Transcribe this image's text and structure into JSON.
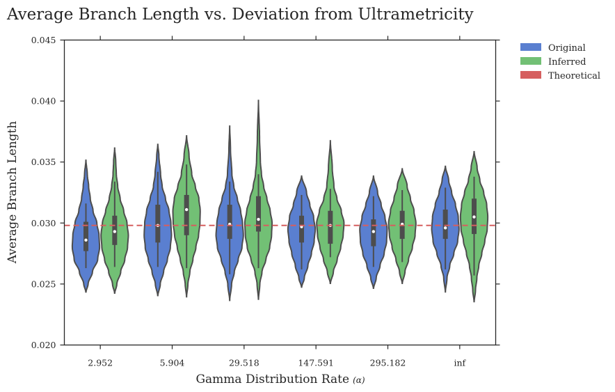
{
  "chart_data": {
    "type": "violin",
    "title": "Average Branch Length vs. Deviation from Ultrametricity",
    "xlabel": "Gamma Distribution Rate",
    "xlabel_symbol": "(α)",
    "ylabel": "Average Branch Length",
    "ylim": [
      0.02,
      0.045
    ],
    "yticks": [
      "0.020",
      "0.025",
      "0.030",
      "0.035",
      "0.040",
      "0.045"
    ],
    "categories": [
      "2.952",
      "5.904",
      "29.518",
      "147.591",
      "295.182",
      "inf"
    ],
    "legend_position": "outside-top-right",
    "grid": false,
    "reference_line": {
      "name": "Theoretical",
      "value": 0.0298,
      "color": "#d65f5f"
    },
    "series": [
      {
        "name": "Original",
        "color": "#4c72b0",
        "fill": "#5a7fd0",
        "groups": [
          {
            "min": 0.0243,
            "max": 0.0352,
            "median": 0.0286,
            "q1": 0.0277,
            "q3": 0.0301,
            "wlo": 0.0263,
            "whi": 0.0316,
            "profile": [
              [
                0.0243,
                0.0
              ],
              [
                0.025,
                0.16
              ],
              [
                0.026,
                0.48
              ],
              [
                0.027,
                0.86
              ],
              [
                0.028,
                1.0
              ],
              [
                0.029,
                0.96
              ],
              [
                0.03,
                0.8
              ],
              [
                0.031,
                0.52
              ],
              [
                0.032,
                0.32
              ],
              [
                0.033,
                0.2
              ],
              [
                0.034,
                0.1
              ],
              [
                0.0352,
                0.0
              ]
            ]
          },
          {
            "min": 0.024,
            "max": 0.0365,
            "median": 0.0298,
            "q1": 0.0284,
            "q3": 0.0315,
            "wlo": 0.0264,
            "whi": 0.0342,
            "profile": [
              [
                0.024,
                0.0
              ],
              [
                0.025,
                0.18
              ],
              [
                0.026,
                0.42
              ],
              [
                0.027,
                0.7
              ],
              [
                0.028,
                0.92
              ],
              [
                0.029,
                1.0
              ],
              [
                0.03,
                0.96
              ],
              [
                0.031,
                0.82
              ],
              [
                0.032,
                0.56
              ],
              [
                0.033,
                0.32
              ],
              [
                0.034,
                0.2
              ],
              [
                0.0355,
                0.08
              ],
              [
                0.0365,
                0.0
              ]
            ]
          },
          {
            "min": 0.0236,
            "max": 0.038,
            "median": 0.0299,
            "q1": 0.0287,
            "q3": 0.0315,
            "wlo": 0.0258,
            "whi": 0.0334,
            "profile": [
              [
                0.0236,
                0.0
              ],
              [
                0.025,
                0.14
              ],
              [
                0.026,
                0.34
              ],
              [
                0.027,
                0.62
              ],
              [
                0.028,
                0.9
              ],
              [
                0.029,
                1.0
              ],
              [
                0.03,
                0.94
              ],
              [
                0.031,
                0.8
              ],
              [
                0.032,
                0.56
              ],
              [
                0.033,
                0.3
              ],
              [
                0.034,
                0.16
              ],
              [
                0.036,
                0.06
              ],
              [
                0.038,
                0.0
              ]
            ]
          },
          {
            "min": 0.0247,
            "max": 0.0339,
            "median": 0.0297,
            "q1": 0.0284,
            "q3": 0.0306,
            "wlo": 0.0262,
            "whi": 0.0323,
            "profile": [
              [
                0.0247,
                0.0
              ],
              [
                0.0255,
                0.2
              ],
              [
                0.0265,
                0.46
              ],
              [
                0.0275,
                0.72
              ],
              [
                0.0285,
                0.92
              ],
              [
                0.0295,
                1.0
              ],
              [
                0.0305,
                0.88
              ],
              [
                0.0315,
                0.6
              ],
              [
                0.0325,
                0.36
              ],
              [
                0.0339,
                0.0
              ]
            ]
          },
          {
            "min": 0.0246,
            "max": 0.0339,
            "median": 0.0293,
            "q1": 0.0281,
            "q3": 0.0303,
            "wlo": 0.0264,
            "whi": 0.0322,
            "profile": [
              [
                0.0246,
                0.0
              ],
              [
                0.0255,
                0.2
              ],
              [
                0.0265,
                0.48
              ],
              [
                0.0275,
                0.78
              ],
              [
                0.0285,
                0.96
              ],
              [
                0.0295,
                1.0
              ],
              [
                0.0305,
                0.84
              ],
              [
                0.0315,
                0.56
              ],
              [
                0.0325,
                0.3
              ],
              [
                0.0339,
                0.0
              ]
            ]
          },
          {
            "min": 0.0243,
            "max": 0.0347,
            "median": 0.0296,
            "q1": 0.0287,
            "q3": 0.0311,
            "wlo": 0.0262,
            "whi": 0.0329,
            "profile": [
              [
                0.0243,
                0.0
              ],
              [
                0.0255,
                0.12
              ],
              [
                0.0265,
                0.32
              ],
              [
                0.0275,
                0.62
              ],
              [
                0.0285,
                0.9
              ],
              [
                0.0295,
                1.0
              ],
              [
                0.0305,
                0.94
              ],
              [
                0.0315,
                0.74
              ],
              [
                0.0325,
                0.46
              ],
              [
                0.0335,
                0.24
              ],
              [
                0.0347,
                0.0
              ]
            ]
          }
        ]
      },
      {
        "name": "Inferred",
        "color": "#55a868",
        "fill": "#72c075",
        "groups": [
          {
            "min": 0.0242,
            "max": 0.0362,
            "median": 0.0293,
            "q1": 0.0282,
            "q3": 0.0306,
            "wlo": 0.0264,
            "whi": 0.0334,
            "profile": [
              [
                0.0242,
                0.0
              ],
              [
                0.025,
                0.16
              ],
              [
                0.026,
                0.44
              ],
              [
                0.027,
                0.74
              ],
              [
                0.028,
                0.94
              ],
              [
                0.029,
                1.0
              ],
              [
                0.03,
                0.9
              ],
              [
                0.031,
                0.66
              ],
              [
                0.032,
                0.4
              ],
              [
                0.033,
                0.22
              ],
              [
                0.034,
                0.12
              ],
              [
                0.035,
                0.08
              ],
              [
                0.0362,
                0.0
              ]
            ]
          },
          {
            "min": 0.0239,
            "max": 0.0372,
            "median": 0.0311,
            "q1": 0.029,
            "q3": 0.0323,
            "wlo": 0.0263,
            "whi": 0.0348,
            "profile": [
              [
                0.0239,
                0.0
              ],
              [
                0.025,
                0.1
              ],
              [
                0.026,
                0.24
              ],
              [
                0.027,
                0.46
              ],
              [
                0.028,
                0.68
              ],
              [
                0.029,
                0.88
              ],
              [
                0.03,
                0.98
              ],
              [
                0.031,
                1.0
              ],
              [
                0.032,
                0.9
              ],
              [
                0.033,
                0.64
              ],
              [
                0.034,
                0.38
              ],
              [
                0.0355,
                0.18
              ],
              [
                0.0372,
                0.0
              ]
            ]
          },
          {
            "min": 0.0237,
            "max": 0.0401,
            "median": 0.0303,
            "q1": 0.0293,
            "q3": 0.0322,
            "wlo": 0.0263,
            "whi": 0.034,
            "profile": [
              [
                0.0237,
                0.0
              ],
              [
                0.025,
                0.1
              ],
              [
                0.026,
                0.26
              ],
              [
                0.027,
                0.54
              ],
              [
                0.028,
                0.82
              ],
              [
                0.029,
                0.96
              ],
              [
                0.03,
                1.0
              ],
              [
                0.031,
                0.86
              ],
              [
                0.032,
                0.62
              ],
              [
                0.033,
                0.38
              ],
              [
                0.034,
                0.22
              ],
              [
                0.035,
                0.14
              ],
              [
                0.037,
                0.08
              ],
              [
                0.0401,
                0.0
              ]
            ]
          },
          {
            "min": 0.025,
            "max": 0.0368,
            "median": 0.0298,
            "q1": 0.0283,
            "q3": 0.031,
            "wlo": 0.0272,
            "whi": 0.0328,
            "profile": [
              [
                0.025,
                0.0
              ],
              [
                0.026,
                0.22
              ],
              [
                0.027,
                0.5
              ],
              [
                0.028,
                0.76
              ],
              [
                0.029,
                0.94
              ],
              [
                0.03,
                1.0
              ],
              [
                0.031,
                0.8
              ],
              [
                0.032,
                0.48
              ],
              [
                0.033,
                0.26
              ],
              [
                0.0345,
                0.14
              ],
              [
                0.0368,
                0.0
              ]
            ]
          },
          {
            "min": 0.025,
            "max": 0.0345,
            "median": 0.0299,
            "q1": 0.0287,
            "q3": 0.031,
            "wlo": 0.0268,
            "whi": 0.0327,
            "profile": [
              [
                0.025,
                0.0
              ],
              [
                0.026,
                0.2
              ],
              [
                0.027,
                0.46
              ],
              [
                0.028,
                0.74
              ],
              [
                0.029,
                0.94
              ],
              [
                0.03,
                1.0
              ],
              [
                0.031,
                0.86
              ],
              [
                0.032,
                0.6
              ],
              [
                0.033,
                0.36
              ],
              [
                0.0345,
                0.0
              ]
            ]
          },
          {
            "min": 0.0235,
            "max": 0.0359,
            "median": 0.0305,
            "q1": 0.0291,
            "q3": 0.032,
            "wlo": 0.0257,
            "whi": 0.0338,
            "profile": [
              [
                0.0235,
                0.0
              ],
              [
                0.0245,
                0.1
              ],
              [
                0.0255,
                0.2
              ],
              [
                0.0265,
                0.34
              ],
              [
                0.0275,
                0.56
              ],
              [
                0.0285,
                0.78
              ],
              [
                0.0295,
                0.96
              ],
              [
                0.0305,
                1.0
              ],
              [
                0.0315,
                0.92
              ],
              [
                0.0325,
                0.7
              ],
              [
                0.0335,
                0.42
              ],
              [
                0.0345,
                0.22
              ],
              [
                0.0359,
                0.0
              ]
            ]
          }
        ]
      }
    ]
  }
}
